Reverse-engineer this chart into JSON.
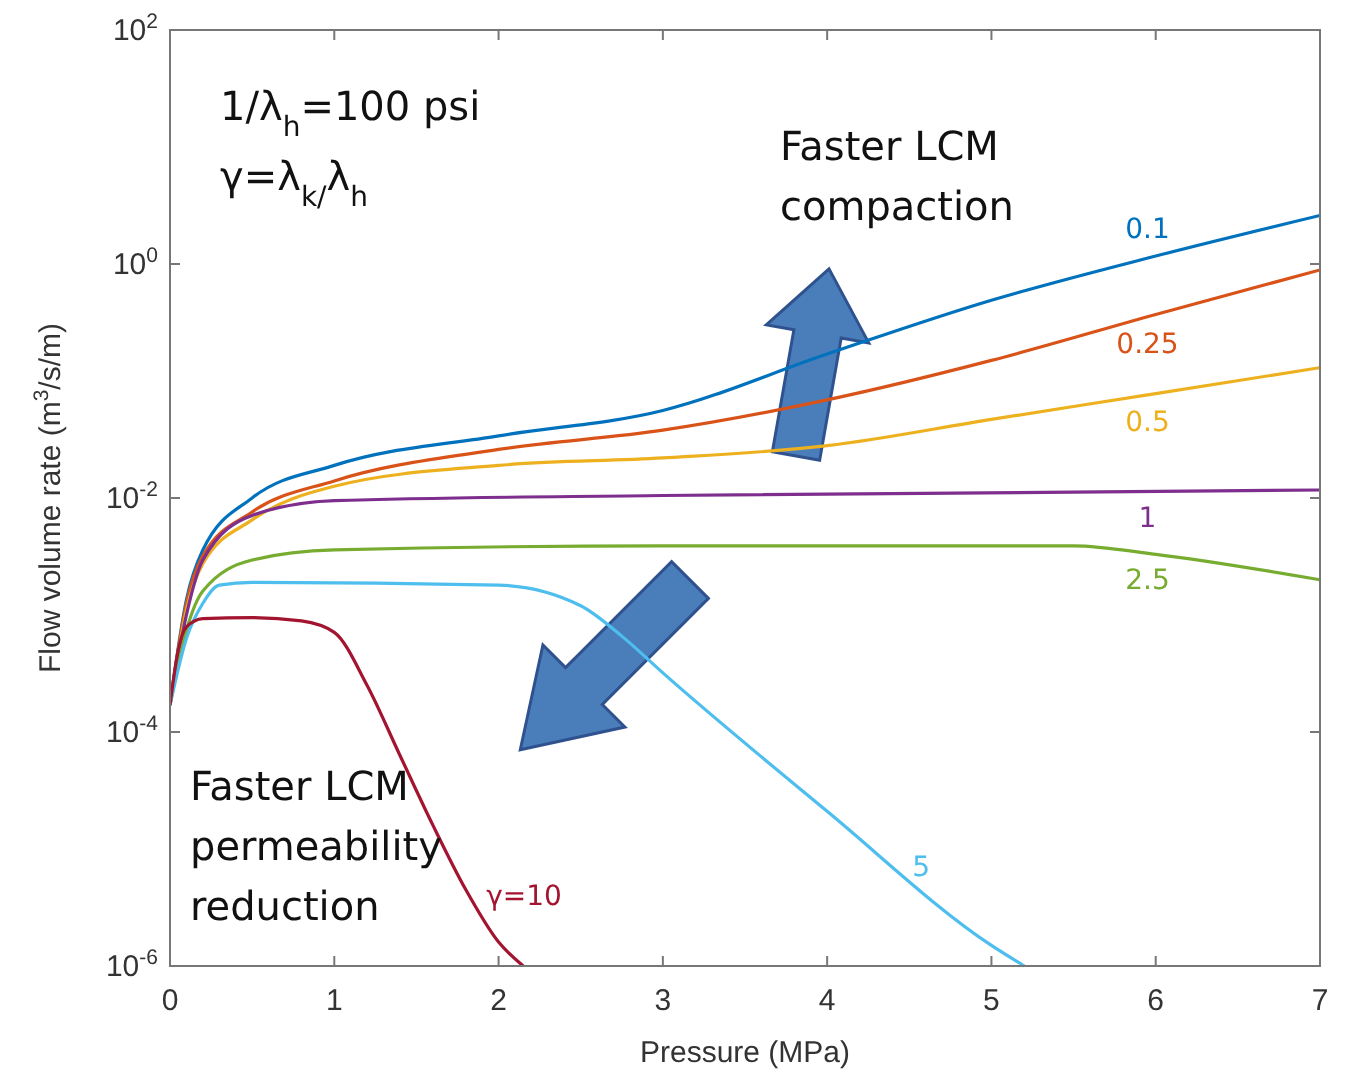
{
  "chart_data": {
    "type": "line",
    "xlabel": "Pressure (MPa)",
    "ylabel": "Flow volume rate (m$^{3}$/s/m)",
    "log": "y",
    "grid": false,
    "line_style": "solid",
    "marker": "none",
    "xlim": [
      0,
      7
    ],
    "xticks": [
      0,
      1,
      2,
      3,
      4,
      5,
      6,
      7
    ],
    "ylim": [
      1e-06,
      100
    ],
    "yticks": [
      {
        "value": 1e-06,
        "label": "10$^{-6}$"
      },
      {
        "value": 0.0001,
        "label": "10$^{-4}$"
      },
      {
        "value": 0.01,
        "label": "10$^{-2}$"
      },
      {
        "value": 1,
        "label": "10$^{0}$"
      },
      {
        "value": 100,
        "label": "10$^{2}$"
      }
    ],
    "annotations": [
      "1/λ$_{h}$=100 psi",
      "γ=λ$_{k/}$λ$_{h}$",
      "Faster LCM compaction",
      "Faster LCM permeability reduction"
    ],
    "series": [
      {
        "name": "0.1",
        "color": "#0072bd",
        "x": [
          0,
          0.1,
          0.2,
          0.5,
          1,
          2,
          3,
          4,
          5,
          6,
          7
        ],
        "values": [
          0.00017,
          0.00135,
          0.0036,
          0.01,
          0.019,
          0.034,
          0.056,
          0.17,
          0.49,
          1.17,
          2.6
        ]
      },
      {
        "name": "0.25",
        "color": "#d95319",
        "x": [
          0,
          0.1,
          0.2,
          0.5,
          1,
          2,
          3,
          4,
          5,
          6,
          7
        ],
        "values": [
          0.00017,
          0.00126,
          0.0032,
          0.0076,
          0.014,
          0.026,
          0.038,
          0.069,
          0.15,
          0.37,
          0.89
        ]
      },
      {
        "name": "0.5",
        "color": "#edb120",
        "x": [
          0,
          0.1,
          0.2,
          0.5,
          1,
          2,
          3,
          4,
          5,
          6,
          7
        ],
        "values": [
          0.00017,
          0.0011,
          0.00275,
          0.0065,
          0.0126,
          0.019,
          0.022,
          0.028,
          0.047,
          0.078,
          0.13
        ]
      },
      {
        "name": "1",
        "color": "#7e2f8e",
        "x": [
          0,
          0.1,
          0.2,
          0.5,
          1,
          3,
          7
        ],
        "values": [
          0.00017,
          0.001,
          0.00295,
          0.0071,
          0.0095,
          0.0105,
          0.0117
        ]
      },
      {
        "name": "2.5",
        "color": "#77ac30",
        "x": [
          0,
          0.1,
          0.2,
          0.5,
          1,
          3,
          5.5,
          6,
          7
        ],
        "values": [
          0.00017,
          0.00074,
          0.0016,
          0.00295,
          0.0036,
          0.0039,
          0.0039,
          0.0033,
          0.002
        ]
      },
      {
        "name": "5",
        "color": "#4dbeee",
        "x": [
          0,
          0.1,
          0.2,
          0.3,
          0.5,
          2,
          2.5,
          2.75,
          3,
          4,
          5,
          5.2
        ],
        "values": [
          0.00017,
          0.00063,
          0.00126,
          0.0018,
          0.0019,
          0.0018,
          0.0012,
          0.00066,
          0.00032,
          2.1e-05,
          1.5e-06,
          1e-06
        ]
      },
      {
        "name": "γ=10",
        "color": "#a2142f",
        "x": [
          0,
          0.05,
          0.1,
          0.2,
          0.5,
          0.8,
          1,
          1.2,
          1.4,
          1.6,
          1.8,
          2,
          2.15
        ],
        "values": [
          0.00017,
          0.0005,
          0.00079,
          0.00093,
          0.00095,
          0.00089,
          0.00071,
          0.00025,
          6.3e-05,
          1.6e-05,
          4.5e-06,
          1.6e-06,
          1e-06
        ]
      }
    ]
  }
}
